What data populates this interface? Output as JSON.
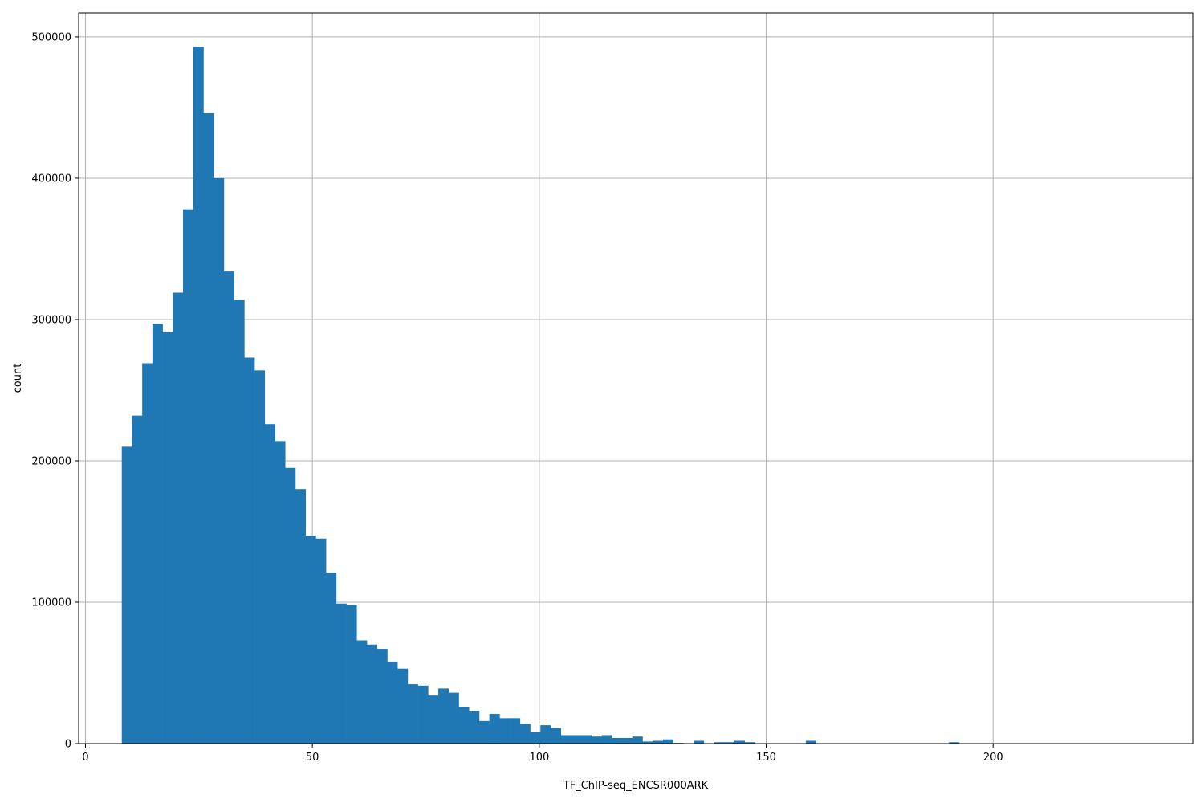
{
  "chart_data": {
    "type": "bar",
    "subtype": "histogram",
    "title": "",
    "xlabel": "TF_ChIP-seq_ENCSR000ARK",
    "ylabel": "count",
    "xlim": [
      -1.5,
      244
    ],
    "ylim": [
      0,
      517000
    ],
    "grid": true,
    "bar_color": "#1f77b4",
    "bin_start": 8.0,
    "bin_width": 2.25,
    "x_ticks": [
      0,
      50,
      100,
      150,
      200
    ],
    "y_ticks": [
      0,
      100000,
      200000,
      300000,
      400000,
      500000
    ],
    "values": [
      210000,
      232000,
      269000,
      297000,
      291000,
      319000,
      378000,
      493000,
      446000,
      400000,
      334000,
      314000,
      273000,
      264000,
      226000,
      214000,
      195000,
      180000,
      147000,
      145000,
      121000,
      99000,
      98000,
      73000,
      70000,
      67000,
      58000,
      53000,
      42000,
      41000,
      34000,
      39000,
      36000,
      26000,
      23000,
      16000,
      21000,
      18000,
      18000,
      14000,
      8000,
      13000,
      11000,
      6000,
      6000,
      6000,
      5000,
      6000,
      4000,
      4000,
      5000,
      1500,
      2000,
      3000,
      500,
      0,
      2000,
      0,
      1000,
      1000,
      2000,
      1000,
      0,
      0,
      0,
      0,
      0,
      2000,
      0,
      0,
      0,
      0,
      0,
      0,
      0,
      0,
      0,
      0,
      0,
      0,
      0,
      1000,
      0,
      0,
      0,
      0,
      0,
      0,
      0,
      0,
      0,
      0,
      0,
      0,
      0,
      0,
      0,
      0,
      0,
      0,
      0,
      0,
      0,
      0,
      0,
      0,
      0,
      0,
      0,
      0,
      1000
    ]
  }
}
